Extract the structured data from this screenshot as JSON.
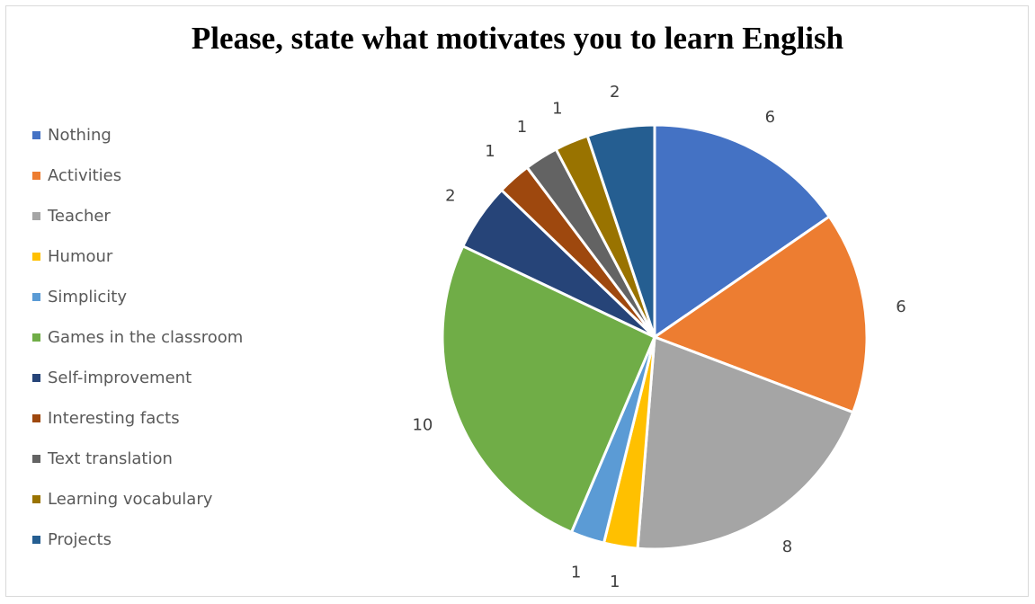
{
  "chart_data": {
    "type": "pie",
    "title": "Please, state what motivates you to learn English",
    "categories": [
      "Nothing",
      "Activities",
      "Teacher",
      "Humour",
      "Simplicity",
      "Games in the classroom",
      "Self-improvement",
      "Interesting facts",
      "Text translation",
      "Learning vocabulary",
      "Projects"
    ],
    "values": [
      6,
      6,
      8,
      1,
      1,
      10,
      2,
      1,
      1,
      1,
      2
    ],
    "colors": [
      "#4472C4",
      "#ED7D31",
      "#A5A5A5",
      "#FFC000",
      "#5B9BD5",
      "#70AD47",
      "#264478",
      "#9E480E",
      "#636363",
      "#997300",
      "#255E91"
    ],
    "data_labels": [
      "6",
      "6",
      "8",
      "1",
      "1",
      "10",
      "2",
      "1",
      "1",
      "1",
      "2"
    ],
    "legend_position": "left",
    "start_angle_deg": 0,
    "direction": "clockwise"
  }
}
